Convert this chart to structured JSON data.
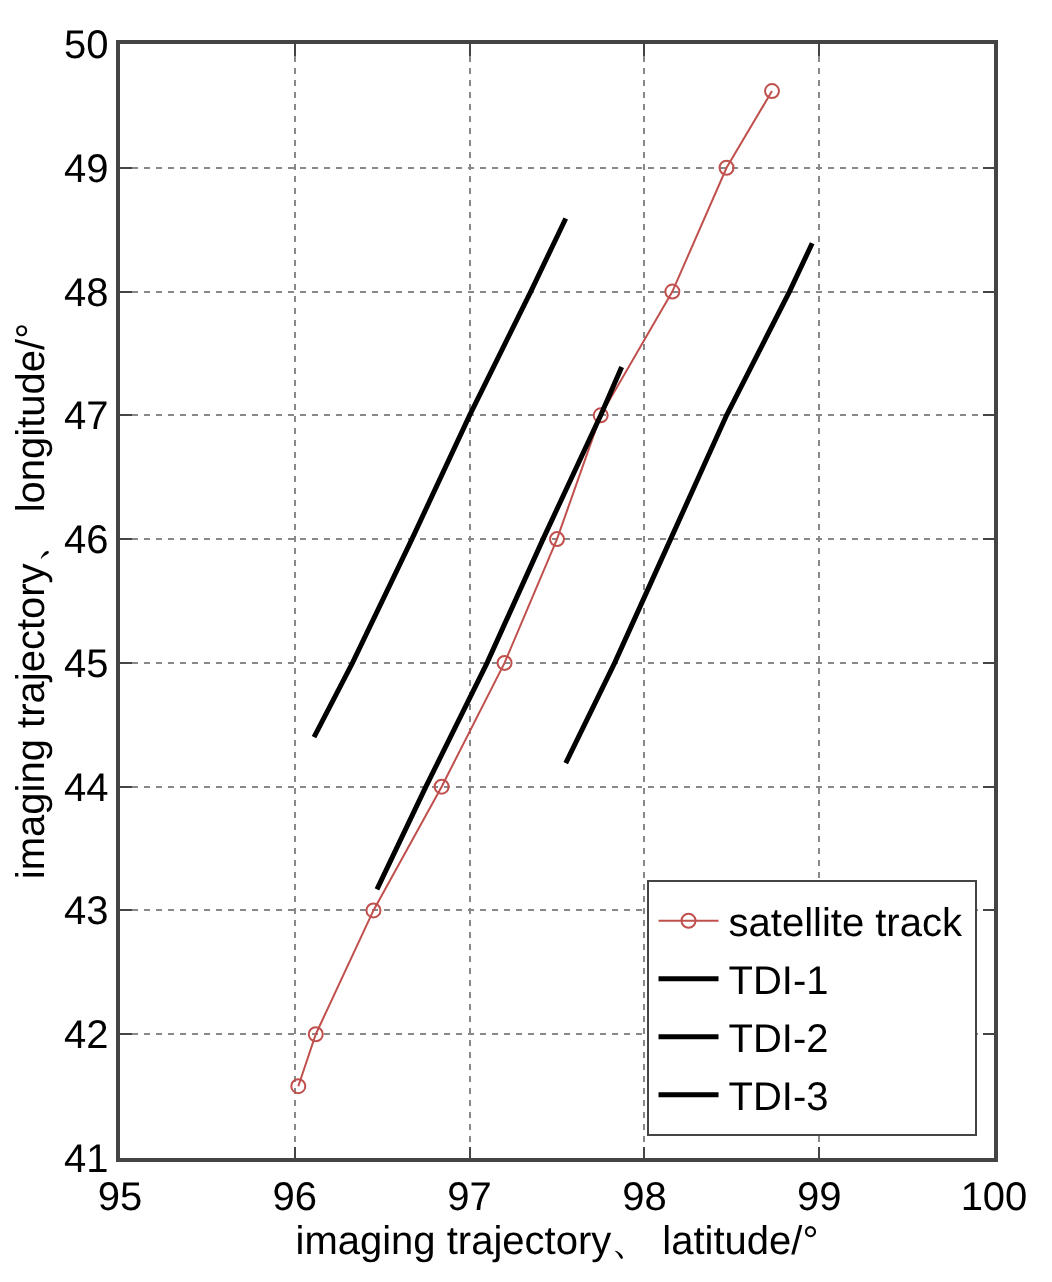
{
  "chart_data": {
    "type": "line",
    "xlabel": "imaging trajectory、 latitude/°",
    "ylabel": "imaging trajectory、 longitude/°",
    "xlim": [
      95,
      100
    ],
    "xticks": [
      95,
      96,
      97,
      98,
      99,
      100
    ],
    "ylim": [
      41,
      50
    ],
    "yticks": [
      41,
      42,
      43,
      44,
      45,
      46,
      47,
      48,
      49,
      50
    ],
    "grid": true,
    "legend": "bottom right",
    "series": [
      {
        "name": "satellite track",
        "color": "#c0504d",
        "marker": "circle",
        "x": [
          96.02,
          96.12,
          96.45,
          96.84,
          97.2,
          97.5,
          97.75,
          98.16,
          98.47,
          98.73
        ],
        "values": [
          41.58,
          42,
          43,
          44,
          45,
          46,
          47,
          48,
          49,
          49.62
        ]
      },
      {
        "name": "TDI-1",
        "color": "#000000",
        "marker": "none",
        "x": [
          96.11,
          96.33,
          96.67,
          97.0,
          97.35,
          97.55
        ],
        "values": [
          44.4,
          45,
          46,
          47,
          48,
          48.59
        ]
      },
      {
        "name": "TDI-2",
        "color": "#000000",
        "marker": "none",
        "x": [
          96.47,
          96.75,
          97.1,
          97.42,
          97.75,
          97.87
        ],
        "values": [
          43.17,
          44,
          45,
          46,
          47,
          47.39
        ]
      },
      {
        "name": "TDI-3",
        "color": "#000000",
        "marker": "none",
        "x": [
          97.55,
          97.83,
          98.15,
          98.47,
          98.83,
          98.96
        ],
        "values": [
          44.19,
          45,
          46,
          47,
          48,
          48.39
        ]
      }
    ]
  }
}
